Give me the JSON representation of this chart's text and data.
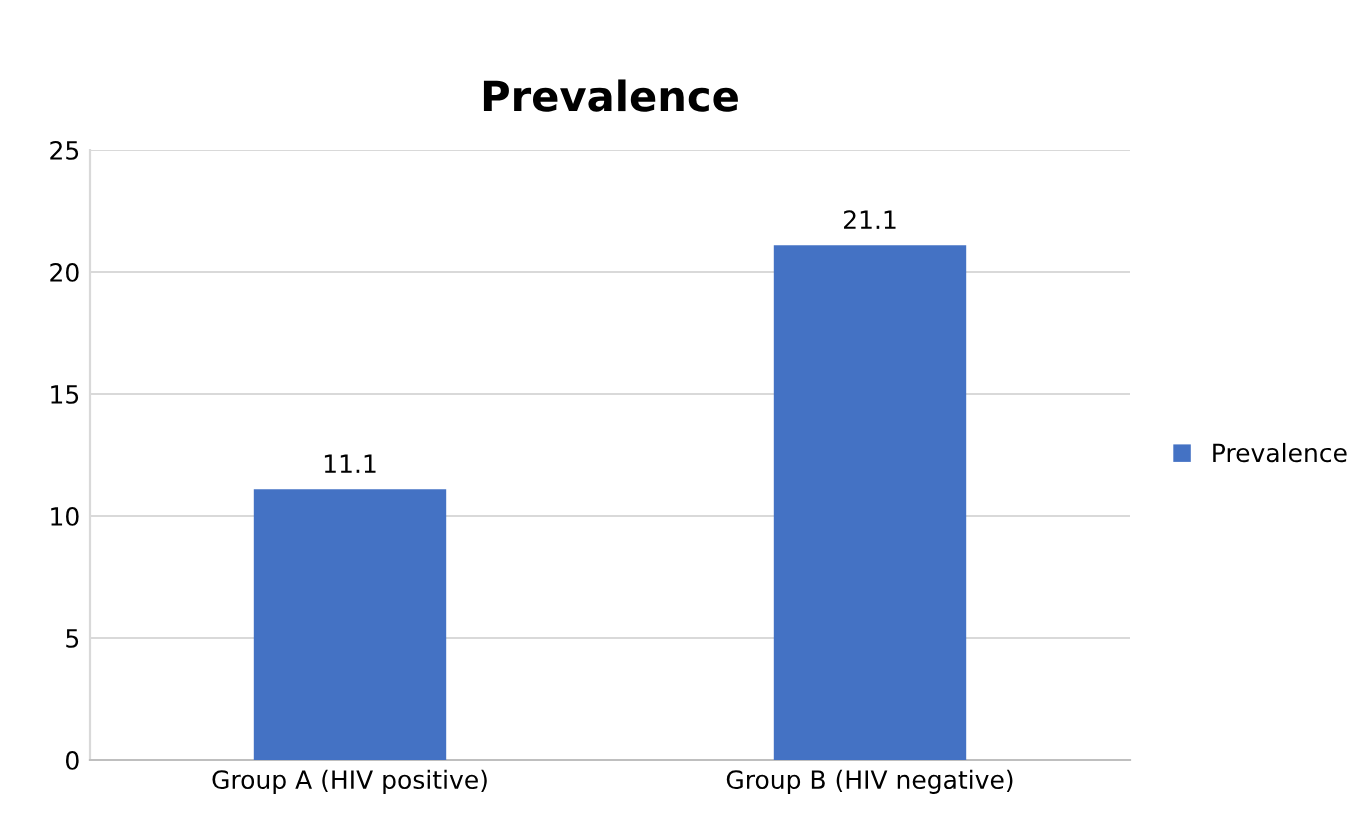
{
  "chart_data": {
    "type": "bar",
    "title": "Prevalence",
    "categories": [
      "Group A (HIV positive)",
      "Group B (HIV negative)"
    ],
    "series": [
      {
        "name": "Prevalence",
        "color": "#4472c4",
        "values": [
          11.1,
          21.1
        ]
      }
    ],
    "ylim": [
      0,
      25
    ],
    "yticks": [
      0,
      5,
      10,
      15,
      20,
      25
    ],
    "grid": "y",
    "legend": "right",
    "data_labels": true
  }
}
